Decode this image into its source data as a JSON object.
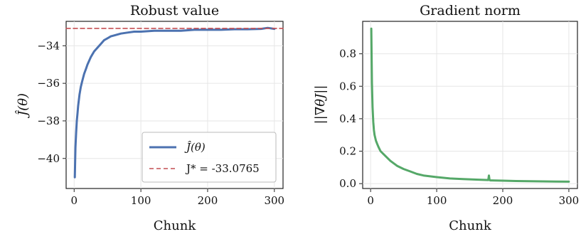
{
  "chart_data": [
    {
      "type": "line",
      "title": "Robust value",
      "xlabel": "Chunk",
      "ylabel": "Ĵ(θ)",
      "xlim": [
        -12,
        313
      ],
      "ylim": [
        -41.6,
        -32.7
      ],
      "xticks": [
        0,
        100,
        200,
        300
      ],
      "yticks": [
        -40,
        -38,
        -36,
        -34
      ],
      "grid": true,
      "legend_position": "lower-right",
      "series": [
        {
          "name": "Ĵ(θ)",
          "color": "#4c72b0",
          "style": "solid",
          "x": [
            1,
            2,
            3,
            4,
            5,
            6,
            8,
            10,
            12,
            15,
            18,
            20,
            25,
            30,
            35,
            40,
            45,
            50,
            55,
            60,
            70,
            80,
            90,
            100,
            120,
            140,
            160,
            180,
            200,
            220,
            240,
            260,
            280,
            290,
            300
          ],
          "y": [
            -41.0,
            -39.4,
            -38.6,
            -38.0,
            -37.6,
            -37.2,
            -36.6,
            -36.2,
            -35.9,
            -35.5,
            -35.2,
            -35.0,
            -34.6,
            -34.3,
            -34.1,
            -33.9,
            -33.7,
            -33.6,
            -33.5,
            -33.45,
            -33.35,
            -33.3,
            -33.25,
            -33.25,
            -33.2,
            -33.2,
            -33.2,
            -33.15,
            -33.15,
            -33.15,
            -33.12,
            -33.12,
            -33.1,
            -33.05,
            -33.1
          ]
        },
        {
          "name": "J* = -33.0765",
          "color": "#c44e52",
          "style": "dashed",
          "x": [
            -12,
            313
          ],
          "y": [
            -33.0765,
            -33.0765
          ]
        }
      ]
    },
    {
      "type": "line",
      "title": "Gradient norm",
      "xlabel": "Chunk",
      "ylabel": "||∇θJ||",
      "xlim": [
        -12,
        313
      ],
      "ylim": [
        -0.03,
        1.0
      ],
      "xticks": [
        0,
        100,
        200,
        300
      ],
      "yticks": [
        0.0,
        0.2,
        0.4,
        0.6,
        0.8
      ],
      "grid": true,
      "series": [
        {
          "name": "",
          "color": "#55a868",
          "style": "solid",
          "x": [
            1,
            2,
            3,
            4,
            5,
            6,
            8,
            10,
            12,
            15,
            20,
            25,
            30,
            40,
            50,
            60,
            70,
            80,
            100,
            120,
            140,
            160,
            178,
            179,
            180,
            181,
            182,
            200,
            220,
            240,
            260,
            280,
            300
          ],
          "y": [
            0.955,
            0.62,
            0.47,
            0.38,
            0.33,
            0.3,
            0.265,
            0.245,
            0.225,
            0.2,
            0.18,
            0.16,
            0.14,
            0.11,
            0.09,
            0.075,
            0.06,
            0.05,
            0.04,
            0.032,
            0.028,
            0.025,
            0.022,
            0.05,
            0.022,
            0.02,
            0.02,
            0.018,
            0.016,
            0.015,
            0.014,
            0.013,
            0.012
          ]
        }
      ]
    }
  ]
}
